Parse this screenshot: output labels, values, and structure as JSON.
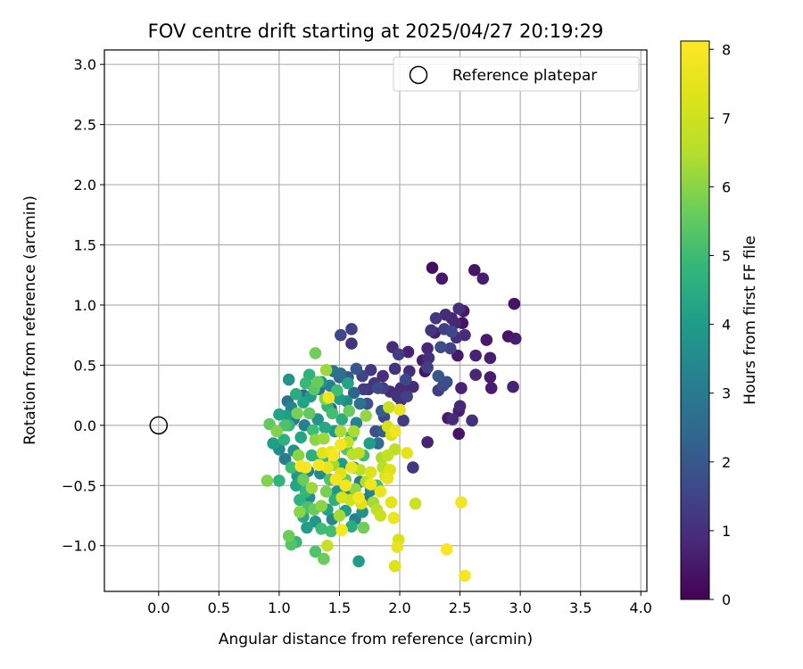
{
  "chart_data": {
    "type": "scatter",
    "title": "FOV centre drift starting at 2025/04/27 20:19:29",
    "xlabel": "Angular distance from reference (arcmin)",
    "ylabel": "Rotation from reference (arcmin)",
    "xlim": [
      -0.45,
      4.05
    ],
    "ylim": [
      -1.38,
      3.12
    ],
    "xticks": [
      0.0,
      0.5,
      1.0,
      1.5,
      2.0,
      2.5,
      3.0,
      3.5,
      4.0
    ],
    "xtick_labels": [
      "0.0",
      "0.5",
      "1.0",
      "1.5",
      "2.0",
      "2.5",
      "3.0",
      "3.5",
      "4.0"
    ],
    "yticks": [
      -1.0,
      -0.5,
      0.0,
      0.5,
      1.0,
      1.5,
      2.0,
      2.5,
      3.0
    ],
    "ytick_labels": [
      "−1.0",
      "−0.5",
      "0.0",
      "0.5",
      "1.0",
      "1.5",
      "2.0",
      "2.5",
      "3.0"
    ],
    "grid": true,
    "legend": {
      "placement": "top-right",
      "entries": [
        "Reference platepar"
      ]
    },
    "reference_point": {
      "x": 0.0,
      "y": 0.0
    },
    "colorbar": {
      "label": "Hours from first FF file",
      "colormap": "viridis",
      "range": [
        0,
        8.12
      ],
      "ticks": [
        0,
        1,
        2,
        3,
        4,
        5,
        6,
        7,
        8
      ],
      "tick_labels": [
        "0",
        "1",
        "2",
        "3",
        "4",
        "5",
        "6",
        "7",
        "8"
      ]
    },
    "points": [
      [
        2.27,
        1.31,
        0.3
      ],
      [
        2.35,
        1.22,
        0.5
      ],
      [
        2.62,
        1.29,
        0.4
      ],
      [
        2.69,
        1.22,
        0.6
      ],
      [
        2.95,
        1.01,
        0.4
      ],
      [
        2.43,
        0.89,
        0.7
      ],
      [
        2.53,
        0.95,
        0.5
      ],
      [
        2.49,
        0.97,
        1.0
      ],
      [
        2.3,
        0.89,
        1.2
      ],
      [
        2.38,
        0.92,
        0.9
      ],
      [
        2.46,
        0.85,
        0.8
      ],
      [
        2.52,
        0.85,
        0.4
      ],
      [
        2.26,
        0.79,
        1.1
      ],
      [
        2.29,
        0.77,
        0.6
      ],
      [
        2.37,
        0.8,
        1.4
      ],
      [
        2.43,
        0.78,
        1.6
      ],
      [
        2.47,
        0.73,
        1.0
      ],
      [
        2.54,
        0.75,
        0.9
      ],
      [
        2.72,
        0.71,
        0.5
      ],
      [
        2.9,
        0.74,
        0.4
      ],
      [
        2.96,
        0.72,
        0.6
      ],
      [
        2.23,
        0.64,
        0.8
      ],
      [
        2.34,
        0.65,
        1.8
      ],
      [
        2.42,
        0.64,
        1.5
      ],
      [
        2.48,
        0.58,
        0.5
      ],
      [
        2.63,
        0.58,
        0.7
      ],
      [
        2.75,
        0.56,
        0.6
      ],
      [
        1.94,
        0.65,
        0.9
      ],
      [
        1.99,
        0.59,
        1.3
      ],
      [
        2.07,
        0.61,
        0.7
      ],
      [
        2.24,
        0.56,
        1.0
      ],
      [
        2.19,
        0.54,
        0.6
      ],
      [
        2.23,
        0.48,
        1.4
      ],
      [
        2.08,
        0.45,
        0.9
      ],
      [
        2.21,
        0.45,
        0.4
      ],
      [
        1.96,
        0.47,
        1.1
      ],
      [
        2.05,
        0.38,
        1.6
      ],
      [
        2.32,
        0.41,
        2.0
      ],
      [
        2.39,
        0.36,
        1.8
      ],
      [
        2.63,
        0.42,
        0.8
      ],
      [
        2.75,
        0.4,
        0.6
      ],
      [
        1.6,
        0.8,
        1.4
      ],
      [
        1.6,
        0.68,
        1.1
      ],
      [
        1.51,
        0.75,
        1.6
      ],
      [
        1.76,
        0.46,
        1.2
      ],
      [
        1.86,
        0.41,
        1.0
      ],
      [
        1.64,
        0.47,
        2.0
      ],
      [
        1.45,
        0.45,
        2.8
      ],
      [
        1.51,
        0.43,
        2.6
      ],
      [
        1.57,
        0.4,
        2.0
      ],
      [
        1.69,
        0.41,
        1.5
      ],
      [
        1.79,
        0.35,
        1.2
      ],
      [
        1.86,
        0.31,
        1.4
      ],
      [
        2.01,
        0.31,
        0.9
      ],
      [
        2.06,
        0.33,
        0.7
      ],
      [
        2.11,
        0.32,
        0.9
      ],
      [
        2.32,
        0.29,
        1.3
      ],
      [
        2.36,
        0.33,
        1.7
      ],
      [
        2.51,
        0.31,
        0.7
      ],
      [
        2.76,
        0.31,
        0.6
      ],
      [
        2.94,
        0.32,
        0.7
      ],
      [
        1.74,
        0.3,
        1.1
      ],
      [
        1.7,
        0.3,
        1.3
      ],
      [
        1.82,
        0.31,
        1.7
      ],
      [
        1.92,
        0.28,
        0.9
      ],
      [
        1.98,
        0.24,
        1.1
      ],
      [
        2.06,
        0.24,
        1.4
      ],
      [
        2.01,
        0.21,
        1.0
      ],
      [
        2.5,
        0.16,
        0.8
      ],
      [
        2.49,
        0.12,
        0.6
      ],
      [
        2.4,
        0.06,
        0.5
      ],
      [
        2.44,
        0.05,
        0.9
      ],
      [
        2.6,
        0.04,
        1.0
      ],
      [
        2.49,
        -0.07,
        0.4
      ],
      [
        2.23,
        -0.14,
        0.7
      ],
      [
        2.11,
        -0.35,
        1.2
      ],
      [
        2.03,
        0.04,
        1.3
      ],
      [
        1.91,
        0.15,
        6.9
      ],
      [
        2.0,
        0.13,
        7.6
      ],
      [
        1.93,
        -0.08,
        7.2
      ],
      [
        1.96,
        -0.05,
        7.8
      ],
      [
        1.9,
        -0.01,
        7.1
      ],
      [
        1.96,
        -0.2,
        6.7
      ],
      [
        2.06,
        -0.23,
        7.5
      ],
      [
        1.92,
        -0.37,
        7.3
      ],
      [
        1.88,
        -0.42,
        7.1
      ],
      [
        1.9,
        -0.44,
        7.6
      ],
      [
        1.76,
        -0.39,
        7.3
      ],
      [
        1.76,
        -0.49,
        7.8
      ],
      [
        1.84,
        -0.55,
        7.7
      ],
      [
        1.93,
        -0.64,
        7.5
      ],
      [
        1.99,
        -0.95,
        7.2
      ],
      [
        2.13,
        -0.65,
        7.0
      ],
      [
        2.51,
        -0.64,
        7.8
      ],
      [
        2.54,
        -1.25,
        8.0
      ],
      [
        2.39,
        -1.03,
        8.0
      ],
      [
        1.98,
        -1.01,
        7.6
      ],
      [
        1.96,
        -1.17,
        7.3
      ],
      [
        1.95,
        -0.77,
        7.7
      ],
      [
        1.84,
        -0.75,
        6.9
      ],
      [
        1.81,
        -0.7,
        6.7
      ],
      [
        1.51,
        -0.16,
        7.9
      ],
      [
        1.43,
        -0.22,
        7.7
      ],
      [
        1.45,
        -0.25,
        8.0
      ],
      [
        1.4,
        -0.35,
        7.6
      ],
      [
        1.33,
        -0.33,
        8.0
      ],
      [
        1.22,
        -0.35,
        7.9
      ],
      [
        1.18,
        -0.34,
        8.0
      ],
      [
        1.6,
        -0.35,
        7.7
      ],
      [
        1.55,
        -0.5,
        7.9
      ],
      [
        1.51,
        -0.4,
        7.4
      ],
      [
        1.47,
        -0.45,
        7.8
      ],
      [
        1.52,
        -0.6,
        7.2
      ],
      [
        1.59,
        -0.62,
        7.0
      ],
      [
        1.66,
        -0.6,
        7.9
      ],
      [
        1.68,
        -0.65,
        7.4
      ],
      [
        1.52,
        -0.87,
        7.9
      ],
      [
        1.4,
        -1.0,
        6.9
      ],
      [
        1.36,
        -0.23,
        7.4
      ],
      [
        1.41,
        0.23,
        7.8
      ],
      [
        1.72,
        -0.47,
        6.5
      ],
      [
        1.66,
        -0.23,
        6.7
      ],
      [
        1.67,
        -0.37,
        6.6
      ],
      [
        1.61,
        -0.24,
        6.6
      ],
      [
        1.57,
        -0.14,
        6.8
      ],
      [
        1.62,
        -0.05,
        6.4
      ],
      [
        1.51,
        -0.05,
        6.4
      ],
      [
        1.37,
        -0.11,
        6.2
      ],
      [
        1.63,
        -0.53,
        6.1
      ],
      [
        1.3,
        0.6,
        5.7
      ],
      [
        1.39,
        0.46,
        6.2
      ],
      [
        1.32,
        0.36,
        5.6
      ],
      [
        1.29,
        0.3,
        5.4
      ],
      [
        1.22,
        0.35,
        4.9
      ],
      [
        1.08,
        0.38,
        3.8
      ],
      [
        1.14,
        0.26,
        4.5
      ],
      [
        1.2,
        0.19,
        4.2
      ],
      [
        1.1,
        0.15,
        3.3
      ],
      [
        1.06,
        0.08,
        4.0
      ],
      [
        1.0,
        0.09,
        4.2
      ],
      [
        1.08,
        0.0,
        4.8
      ],
      [
        0.92,
        0.01,
        5.5
      ],
      [
        0.95,
        -0.15,
        4.1
      ],
      [
        0.9,
        -0.46,
        5.9
      ],
      [
        1.0,
        -0.46,
        4.7
      ],
      [
        1.08,
        -0.92,
        5.6
      ],
      [
        1.1,
        -0.99,
        5.3
      ],
      [
        1.14,
        -0.97,
        4.9
      ],
      [
        1.2,
        -0.76,
        4.4
      ],
      [
        1.24,
        -0.68,
        5.2
      ],
      [
        1.17,
        -0.62,
        4.7
      ],
      [
        1.3,
        -1.05,
        5.3
      ],
      [
        1.37,
        -1.11,
        5.6
      ],
      [
        1.35,
        -0.86,
        5.0
      ],
      [
        1.3,
        -0.8,
        3.9
      ],
      [
        1.44,
        -0.78,
        3.4
      ],
      [
        1.55,
        -0.71,
        4.1
      ],
      [
        1.6,
        -0.84,
        4.5
      ],
      [
        1.66,
        -1.13,
        4.0
      ],
      [
        1.7,
        -0.85,
        5.7
      ],
      [
        1.63,
        -0.78,
        3.2
      ],
      [
        1.69,
        -0.72,
        3.7
      ],
      [
        1.73,
        -0.61,
        3.0
      ],
      [
        1.78,
        -0.64,
        6.3
      ],
      [
        1.81,
        -0.5,
        5.1
      ],
      [
        1.86,
        -0.35,
        6.6
      ],
      [
        1.85,
        -0.27,
        6.4
      ],
      [
        1.82,
        -0.15,
        2.6
      ],
      [
        1.8,
        -0.05,
        1.8
      ],
      [
        1.87,
        0.07,
        1.6
      ],
      [
        1.67,
        0.18,
        2.8
      ],
      [
        1.72,
        0.08,
        6.1
      ],
      [
        1.5,
        0.22,
        4.0
      ],
      [
        1.42,
        0.33,
        3.1
      ],
      [
        1.35,
        0.36,
        3.8
      ],
      [
        1.25,
        0.1,
        5.5
      ],
      [
        1.28,
        -0.04,
        5.0
      ],
      [
        1.18,
        -0.1,
        4.3
      ],
      [
        1.12,
        -0.21,
        3.6
      ],
      [
        1.05,
        -0.28,
        3.0
      ],
      [
        1.27,
        -0.25,
        4.6
      ],
      [
        1.34,
        -0.4,
        3.5
      ],
      [
        1.2,
        -0.45,
        5.6
      ],
      [
        1.14,
        -0.5,
        4.3
      ],
      [
        1.27,
        -0.52,
        6.2
      ],
      [
        1.39,
        -0.55,
        5.8
      ],
      [
        1.46,
        -0.62,
        4.6
      ],
      [
        1.35,
        -0.67,
        6.0
      ],
      [
        1.25,
        -0.6,
        3.6
      ],
      [
        1.45,
        -0.33,
        6.3
      ],
      [
        1.56,
        -0.2,
        5.3
      ],
      [
        1.6,
        -0.09,
        4.9
      ],
      [
        1.52,
        0.05,
        4.5
      ],
      [
        1.56,
        0.2,
        3.5
      ],
      [
        1.44,
        0.1,
        5.1
      ],
      [
        1.46,
        -0.05,
        3.9
      ],
      [
        1.38,
        -0.02,
        4.4
      ],
      [
        1.32,
        0.05,
        3.7
      ],
      [
        1.4,
        0.16,
        4.8
      ],
      [
        1.21,
        0.0,
        3.2
      ],
      [
        1.15,
        0.1,
        5.8
      ],
      [
        1.05,
        0.0,
        5.2
      ],
      [
        1.04,
        -0.12,
        4.6
      ],
      [
        1.1,
        -0.35,
        5.0
      ],
      [
        1.15,
        -0.42,
        3.9
      ],
      [
        1.22,
        -0.55,
        4.8
      ],
      [
        1.29,
        -0.7,
        5.6
      ],
      [
        1.4,
        -0.7,
        4.2
      ],
      [
        1.48,
        -0.55,
        3.8
      ],
      [
        1.55,
        -0.45,
        5.5
      ],
      [
        1.62,
        -0.35,
        4.4
      ],
      [
        1.7,
        -0.25,
        5.0
      ],
      [
        1.75,
        -0.15,
        4.1
      ],
      [
        1.64,
        0.02,
        3.3
      ],
      [
        1.58,
        0.12,
        5.6
      ],
      [
        1.48,
        0.29,
        5.0
      ],
      [
        1.38,
        0.22,
        5.9
      ],
      [
        1.26,
        0.24,
        4.0
      ],
      [
        1.12,
        0.05,
        3.0
      ],
      [
        1.16,
        -0.25,
        6.0
      ],
      [
        1.24,
        -0.38,
        3.3
      ],
      [
        1.3,
        -0.12,
        6.0
      ],
      [
        1.36,
        -0.28,
        4.9
      ],
      [
        1.42,
        -0.45,
        5.3
      ],
      [
        1.52,
        -0.32,
        4.0
      ],
      [
        1.58,
        -0.55,
        3.6
      ],
      [
        1.5,
        -0.75,
        6.3
      ],
      [
        1.43,
        -0.88,
        5.1
      ],
      [
        1.23,
        -0.85,
        4.1
      ],
      [
        1.17,
        -0.72,
        6.0
      ],
      [
        1.0,
        -0.2,
        3.5
      ],
      [
        0.98,
        -0.05,
        5.9
      ],
      [
        1.07,
        0.2,
        2.8
      ],
      [
        1.2,
        0.25,
        2.5
      ],
      [
        1.33,
        0.3,
        2.7
      ],
      [
        1.62,
        0.27,
        2.3
      ],
      [
        1.73,
        0.18,
        1.9
      ],
      [
        1.85,
        0.12,
        2.2
      ],
      [
        1.67,
        -0.47,
        2.9
      ],
      [
        1.76,
        -0.54,
        3.3
      ],
      [
        1.86,
        -0.05,
        2.1
      ],
      [
        1.9,
        -0.25,
        6.8
      ],
      [
        1.5,
        0.4,
        2.4
      ],
      [
        1.43,
        0.14,
        2.2
      ],
      [
        1.25,
        0.42,
        4.7
      ],
      [
        1.57,
        0.35,
        4.2
      ]
    ]
  }
}
